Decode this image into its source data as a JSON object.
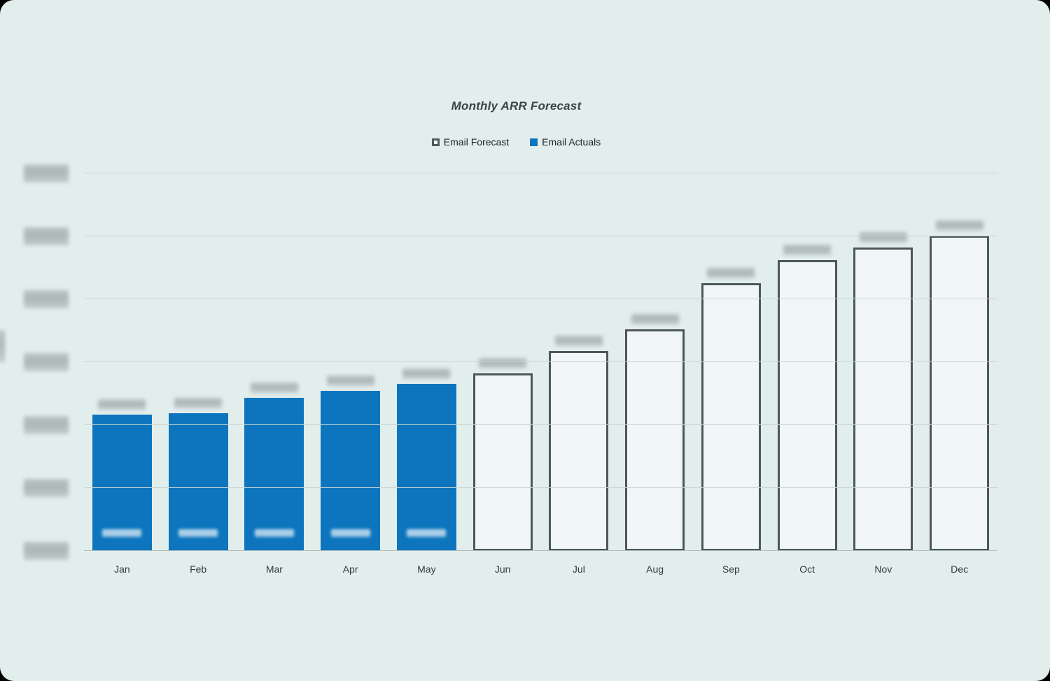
{
  "chart": {
    "title": "Monthly ARR Forecast",
    "legend": [
      {
        "label": "Email Forecast",
        "type": "forecast"
      },
      {
        "label": "Email Actuals",
        "type": "actuals"
      }
    ],
    "colors": {
      "actuals_fill": "#0c75bd",
      "forecast_border": "#4d5659",
      "forecast_fill": "#f0f7f6",
      "background": "#e2eeec",
      "gridline": "#c7d5d3"
    }
  },
  "chart_data": {
    "type": "bar",
    "title": "Monthly ARR Forecast",
    "categories": [
      "Jan",
      "Feb",
      "Mar",
      "Apr",
      "May",
      "Jun",
      "Jul",
      "Aug",
      "Sep",
      "Oct",
      "Nov",
      "Dec"
    ],
    "bars": [
      {
        "month": "Jan",
        "value": 217000,
        "series": "Email Actuals"
      },
      {
        "month": "Feb",
        "value": 219000,
        "series": "Email Actuals"
      },
      {
        "month": "Mar",
        "value": 243000,
        "series": "Email Actuals"
      },
      {
        "month": "Apr",
        "value": 254000,
        "series": "Email Actuals"
      },
      {
        "month": "May",
        "value": 266000,
        "series": "Email Actuals"
      },
      {
        "month": "Jun",
        "value": 282000,
        "series": "Email Forecast"
      },
      {
        "month": "Jul",
        "value": 318000,
        "series": "Email Forecast"
      },
      {
        "month": "Aug",
        "value": 352000,
        "series": "Email Forecast"
      },
      {
        "month": "Sep",
        "value": 426000,
        "series": "Email Forecast"
      },
      {
        "month": "Oct",
        "value": 462000,
        "series": "Email Forecast"
      },
      {
        "month": "Nov",
        "value": 482000,
        "series": "Email Forecast"
      },
      {
        "month": "Dec",
        "value": 501000,
        "series": "Email Forecast"
      }
    ],
    "series": [
      {
        "name": "Email Forecast",
        "style": "outlined"
      },
      {
        "name": "Email Actuals",
        "style": "filled"
      }
    ],
    "ylim": [
      0,
      600000
    ],
    "gridline_step": 100000,
    "gridlines": true,
    "legend_position": "top-center",
    "value_labels": "present above every bar but blurred/redacted in screenshot; values estimated from gridlines",
    "inbar_labels": "white labels inside Jan-May actual bars, blurred/redacted in screenshot",
    "y_axis_labels": "blurred/redacted in screenshot"
  }
}
